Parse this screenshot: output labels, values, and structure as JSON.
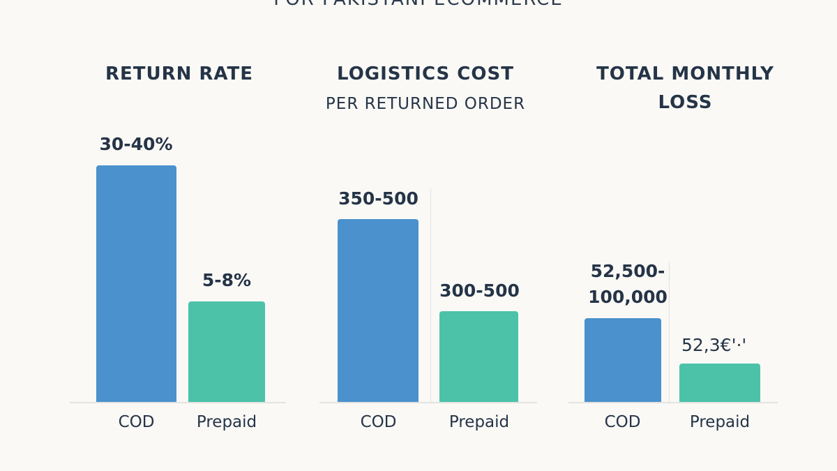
{
  "title": "FOR PAKISTANI ECOMMERCE",
  "colors": {
    "cod": "#4a91cd",
    "prepaid": "#4cc2a9",
    "text": "#253447",
    "background": "#faf9f6"
  },
  "chart_data": [
    {
      "type": "bar",
      "title": "RETURN RATE",
      "subtitle": "",
      "categories": [
        "COD",
        "Prepaid"
      ],
      "value_labels": [
        "30-40%",
        "5-8%"
      ]
    },
    {
      "type": "bar",
      "title": "LOGISTICS COST",
      "subtitle": "PER RETURNED ORDER",
      "categories": [
        "COD",
        "Prepaid"
      ],
      "value_labels": [
        "350-500",
        "300-500"
      ]
    },
    {
      "type": "bar",
      "title": "TOTAL MONTHLY LOSS",
      "subtitle": "",
      "categories": [
        "COD",
        "Prepaid"
      ],
      "value_labels": [
        "52,500-100,000",
        "52,3€'·'"
      ]
    }
  ]
}
